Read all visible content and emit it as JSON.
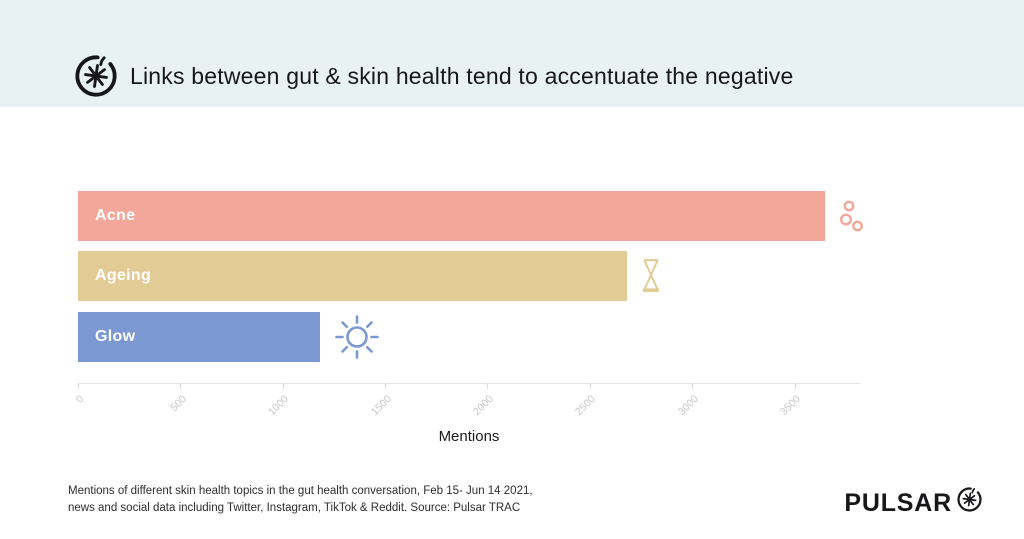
{
  "header": {
    "title": "Links between gut & skin health tend to accentuate the negative"
  },
  "chart_data": {
    "type": "bar",
    "orientation": "horizontal",
    "categories": [
      "Acne",
      "Ageing",
      "Glow"
    ],
    "values": [
      3650,
      2680,
      1180
    ],
    "colors": [
      "#f3a79a",
      "#e2cb95",
      "#7b98d3"
    ],
    "icons": [
      "bubbles-icon",
      "hourglass-icon",
      "sun-icon"
    ],
    "xlabel": "Mentions",
    "xlim": [
      0,
      3820
    ],
    "xticks": [
      0,
      500,
      1000,
      1500,
      2000,
      2500,
      3000,
      3500
    ],
    "grid": false,
    "legend": false
  },
  "footer": {
    "caption_line1": "Mentions of different skin health topics in the gut health conversation, Feb 15- Jun 14 2021,",
    "caption_line2": "news and social data including Twitter, Instagram, TikTok & Reddit. Source: Pulsar TRAC",
    "brand": "PULSAR"
  },
  "colors": {
    "header_bg": "#e8f2f2",
    "ink": "#17171a",
    "axis_line": "#e3e3e3",
    "tick_label": "#c7c7c7",
    "caption": "#2d2d2d"
  }
}
